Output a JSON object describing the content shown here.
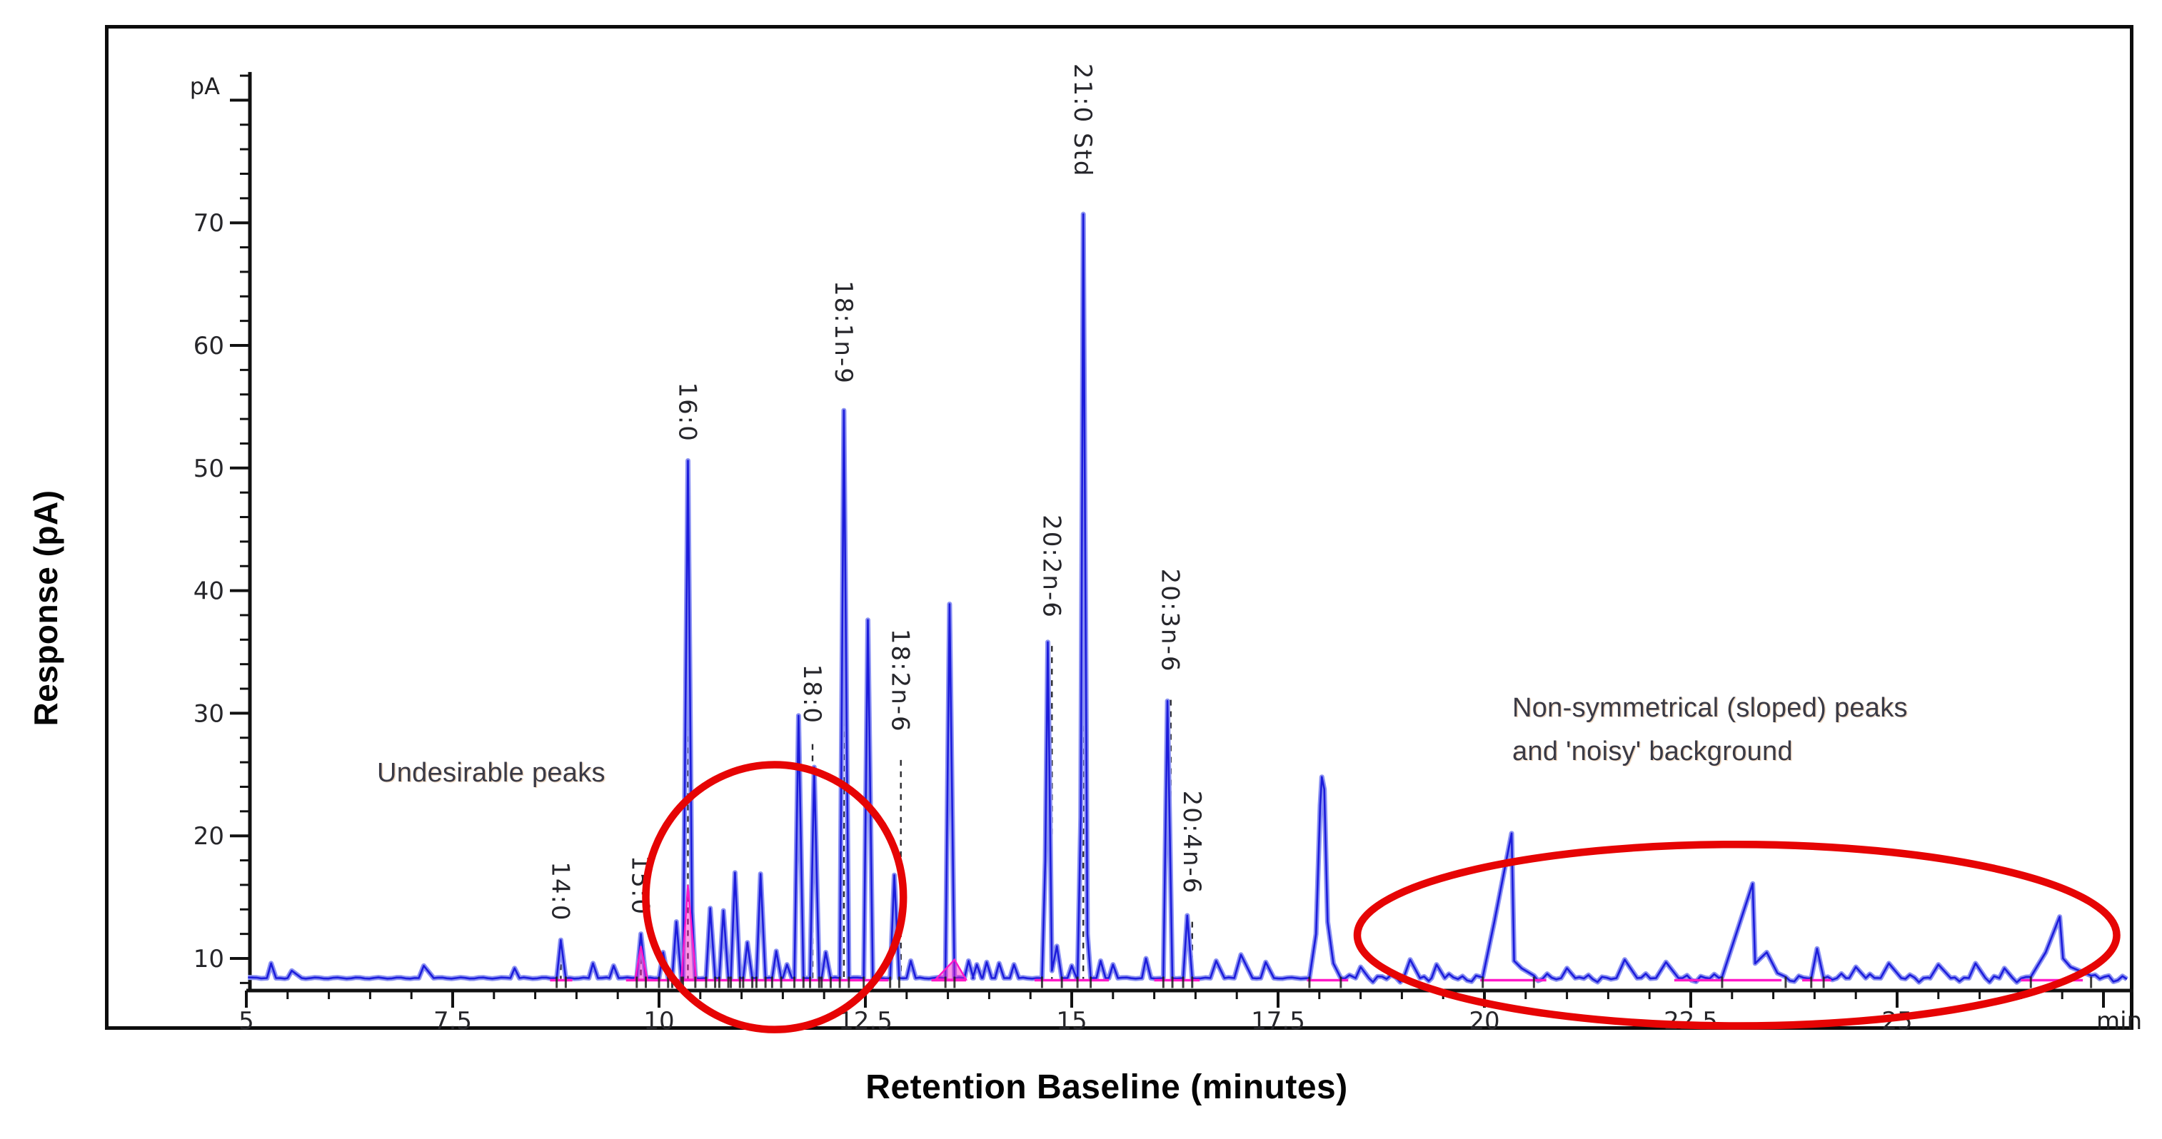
{
  "figure": {
    "y_axis_title": "Response (pA)",
    "x_axis_title": "Retention Baseline (minutes)"
  },
  "annotations": {
    "undesirable_peaks": "Undesirable peaks",
    "non_symmetrical_line1": "Non-symmetrical (sloped) peaks",
    "non_symmetrical_line2": "and 'noisy' background"
  },
  "chart_data": {
    "type": "line",
    "xlabel": "Retention Baseline (minutes)",
    "ylabel": "Response (pA)",
    "x_unit_label": "min",
    "y_unit_label": "pA",
    "xlim": [
      5,
      27.9
    ],
    "ylim_view": [
      7.4,
      82.3
    ],
    "grid": false,
    "y_tick_labels": [
      10,
      20,
      30,
      40,
      50,
      60,
      70
    ],
    "y_major_step": 10,
    "y_minor_step": 2,
    "x_tick_labels": [
      {
        "v": 5,
        "label": "5"
      },
      {
        "v": 7.5,
        "label": "7.5"
      },
      {
        "v": 10,
        "label": "10"
      },
      {
        "v": 12.5,
        "label": "12.5"
      },
      {
        "v": 15,
        "label": "15"
      },
      {
        "v": 17.5,
        "label": "17.5"
      },
      {
        "v": 20,
        "label": "20"
      },
      {
        "v": 22.5,
        "label": "22.5"
      },
      {
        "v": 25,
        "label": "25"
      }
    ],
    "x_major_step": 2.5,
    "x_minor_step": 0.5,
    "baseline_level": 8.4,
    "colors": {
      "trace": "#1c1cdb",
      "trace_halo": "#8a91f2",
      "integration_baseline": "#ff18c8",
      "annotation_ellipse": "#e60404",
      "axis": "#111111",
      "peak_label_text": "#26262b",
      "tick_label_text": "#26262a"
    },
    "peaks": [
      {
        "rt": 5.3,
        "height": 9.6
      },
      {
        "rt": 5.55,
        "height": 9.0,
        "wl": 0.05,
        "wr": 0.12
      },
      {
        "rt": 7.15,
        "height": 9.4,
        "wl": 0.06,
        "wr": 0.12
      },
      {
        "rt": 8.25,
        "height": 9.2
      },
      {
        "rt": 8.81,
        "height": 11.5,
        "label": "14:0"
      },
      {
        "rt": 9.2,
        "height": 9.6
      },
      {
        "rt": 9.45,
        "height": 9.4
      },
      {
        "rt": 9.78,
        "height": 12.0,
        "label": "15:0"
      },
      {
        "rt": 10.05,
        "height": 10.5
      },
      {
        "rt": 10.21,
        "height": 13.0
      },
      {
        "rt": 10.35,
        "height": 50.6,
        "label": "16:0",
        "shape": [
          [
            10.29,
            8.4
          ],
          [
            10.35,
            50.6
          ],
          [
            10.4,
            13.8
          ],
          [
            10.44,
            8.4
          ]
        ]
      },
      {
        "rt": 10.62,
        "height": 14.1
      },
      {
        "rt": 10.78,
        "height": 13.9
      },
      {
        "rt": 10.92,
        "height": 17.0
      },
      {
        "rt": 11.07,
        "height": 11.3
      },
      {
        "rt": 11.23,
        "height": 16.9
      },
      {
        "rt": 11.42,
        "height": 10.6
      },
      {
        "rt": 11.55,
        "height": 9.5
      },
      {
        "rt": 11.69,
        "height": 29.8,
        "label": "18:0",
        "label_t": 11.86,
        "label_top_pa": 34.0
      },
      {
        "rt": 11.88,
        "height": 25.6
      },
      {
        "rt": 12.02,
        "height": 10.5
      },
      {
        "rt": 12.24,
        "height": 54.7,
        "label": "18:1n-9"
      },
      {
        "rt": 12.53,
        "height": 37.6,
        "label": "18:2n-6",
        "label_t": 12.93,
        "label_top_pa": 36.9
      },
      {
        "rt": 12.85,
        "height": 16.8
      },
      {
        "rt": 13.05,
        "height": 9.8
      },
      {
        "rt": 13.52,
        "height": 38.9
      },
      {
        "rt": 13.75,
        "height": 9.8
      },
      {
        "rt": 13.85,
        "height": 9.5
      },
      {
        "rt": 13.97,
        "height": 9.7
      },
      {
        "rt": 14.12,
        "height": 9.6
      },
      {
        "rt": 14.3,
        "height": 9.5
      },
      {
        "rt": 14.71,
        "height": 35.8,
        "label": "20:2n-6",
        "label_t": 14.76,
        "label_top_pa": 46.2,
        "shape": [
          [
            14.64,
            8.4
          ],
          [
            14.68,
            18.0
          ],
          [
            14.71,
            35.8
          ],
          [
            14.76,
            9.0
          ],
          [
            14.82,
            11.0
          ],
          [
            14.88,
            8.4
          ]
        ]
      },
      {
        "rt": 15.0,
        "height": 9.4
      },
      {
        "rt": 15.14,
        "height": 70.7,
        "label": "21:0 Std",
        "label_top_pa": 83.0,
        "shape": [
          [
            15.07,
            8.4
          ],
          [
            15.11,
            21.5
          ],
          [
            15.14,
            70.7
          ],
          [
            15.19,
            12.0
          ],
          [
            15.23,
            8.4
          ]
        ]
      },
      {
        "rt": 15.35,
        "height": 9.8
      },
      {
        "rt": 15.5,
        "height": 9.5
      },
      {
        "rt": 15.9,
        "height": 10.0
      },
      {
        "rt": 16.16,
        "height": 31.0,
        "label": "20:3n-6",
        "label_t": 16.2,
        "label_top_pa": 41.8
      },
      {
        "rt": 16.4,
        "height": 13.5,
        "label": "20:4n-6",
        "label_t": 16.46,
        "label_top_pa": 23.7
      },
      {
        "rt": 16.75,
        "height": 9.8,
        "wl": 0.07,
        "wr": 0.1
      },
      {
        "rt": 17.05,
        "height": 10.3,
        "wl": 0.08,
        "wr": 0.14
      },
      {
        "rt": 17.35,
        "height": 9.7,
        "wl": 0.06,
        "wr": 0.1
      },
      {
        "rt": 18.03,
        "height": 24.8,
        "shape": [
          [
            17.88,
            8.4
          ],
          [
            17.96,
            12.0
          ],
          [
            18.01,
            22.5
          ],
          [
            18.03,
            24.8
          ],
          [
            18.06,
            23.8
          ],
          [
            18.1,
            13.0
          ],
          [
            18.17,
            9.6
          ],
          [
            18.26,
            8.4
          ]
        ]
      },
      {
        "rt": 18.5,
        "height": 9.3,
        "wl": 0.06,
        "wr": 0.1
      },
      {
        "rt": 19.1,
        "height": 9.9,
        "wl": 0.08,
        "wr": 0.12
      },
      {
        "rt": 19.42,
        "height": 9.5,
        "wl": 0.06,
        "wr": 0.1
      },
      {
        "rt": 20.33,
        "height": 20.2,
        "type": "sloped",
        "shape": [
          [
            19.98,
            8.5
          ],
          [
            20.12,
            13.0
          ],
          [
            20.33,
            20.2
          ],
          [
            20.36,
            9.8
          ],
          [
            20.45,
            9.2
          ],
          [
            20.6,
            8.6
          ]
        ]
      },
      {
        "rt": 21.0,
        "height": 9.2,
        "wl": 0.07,
        "wr": 0.1
      },
      {
        "rt": 21.7,
        "height": 9.9,
        "wl": 0.1,
        "wr": 0.15
      },
      {
        "rt": 22.2,
        "height": 9.7,
        "wl": 0.12,
        "wr": 0.15
      },
      {
        "rt": 23.25,
        "height": 16.1,
        "type": "sloped",
        "shape": [
          [
            22.88,
            8.5
          ],
          [
            23.05,
            12.0
          ],
          [
            23.25,
            16.1
          ],
          [
            23.28,
            9.6
          ],
          [
            23.42,
            10.5
          ],
          [
            23.55,
            8.8
          ],
          [
            23.65,
            8.5
          ]
        ]
      },
      {
        "rt": 24.03,
        "height": 10.8,
        "wl": 0.07,
        "wr": 0.08
      },
      {
        "rt": 24.5,
        "height": 9.3,
        "wl": 0.08,
        "wr": 0.12
      },
      {
        "rt": 24.9,
        "height": 9.6,
        "wl": 0.1,
        "wr": 0.15
      },
      {
        "rt": 25.5,
        "height": 9.5,
        "wl": 0.1,
        "wr": 0.15
      },
      {
        "rt": 25.95,
        "height": 9.6,
        "wl": 0.08,
        "wr": 0.12
      },
      {
        "rt": 26.3,
        "height": 9.2,
        "wl": 0.06,
        "wr": 0.1
      },
      {
        "rt": 26.97,
        "height": 13.4,
        "type": "sloped",
        "shape": [
          [
            26.62,
            8.5
          ],
          [
            26.8,
            10.5
          ],
          [
            26.97,
            13.4
          ],
          [
            27.01,
            10.0
          ],
          [
            27.1,
            9.3
          ],
          [
            27.35,
            8.6
          ]
        ]
      }
    ],
    "integration_segments": [
      [
        8.68,
        8.95
      ],
      [
        9.6,
        10.55
      ],
      [
        10.55,
        12.1
      ],
      [
        12.1,
        12.78
      ],
      [
        13.3,
        13.72
      ],
      [
        14.55,
        15.45
      ],
      [
        16.0,
        16.55
      ],
      [
        17.85,
        18.35
      ],
      [
        19.95,
        20.75
      ],
      [
        22.3,
        23.6
      ],
      [
        23.85,
        24.2
      ],
      [
        26.5,
        27.25
      ]
    ],
    "integration_wedges": [
      {
        "t1": 9.71,
        "apex_t": 9.78,
        "t2": 9.86,
        "apex_v": 11.0
      },
      {
        "t1": 10.27,
        "apex_t": 10.35,
        "t2": 10.45,
        "apex_v": 16.0
      },
      {
        "t1": 13.35,
        "apex_t": 13.58,
        "t2": 13.72,
        "apex_v": 9.9
      }
    ],
    "noise_region": {
      "from": 18.35,
      "to": 27.85,
      "amplitude": 0.25
    },
    "highlight_ellipses": [
      {
        "cx_min": 11.4,
        "cy_pa": 15.0,
        "rx_min": 1.56,
        "ry_pa": 10.8
      },
      {
        "cx_min": 23.06,
        "cy_pa": 11.9,
        "rx_min": 4.6,
        "ry_pa": 7.4
      }
    ]
  }
}
